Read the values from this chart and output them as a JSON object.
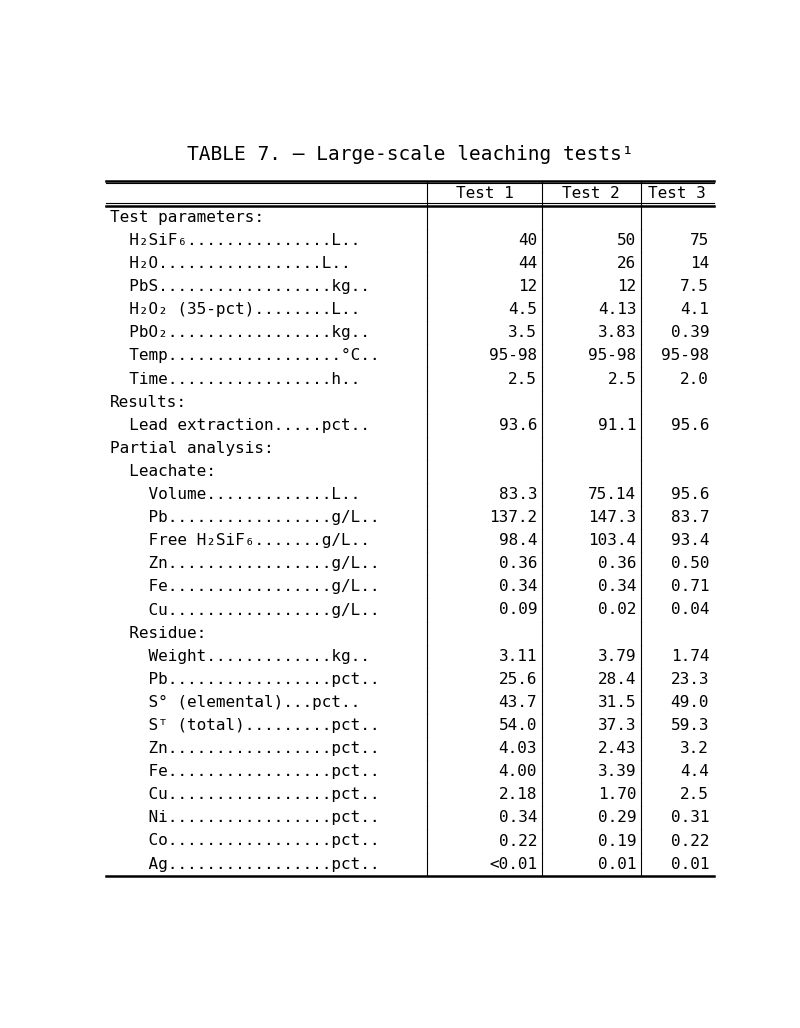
{
  "title": "TABLE 7. – Large-scale leaching tests¹",
  "rows": [
    {
      "label": "Test parameters:",
      "indent": 0,
      "section": true,
      "values": [
        "",
        "",
        ""
      ]
    },
    {
      "label": "  H₂SiF₆...............L..",
      "indent": 0,
      "section": false,
      "values": [
        "40",
        "50",
        "75"
      ]
    },
    {
      "label": "  H₂O.................L..",
      "indent": 0,
      "section": false,
      "values": [
        "44",
        "26",
        "14"
      ]
    },
    {
      "label": "  PbS..................kg..",
      "indent": 0,
      "section": false,
      "values": [
        "12",
        "12",
        "7.5"
      ]
    },
    {
      "label": "  H₂O₂ (35-pct)........L..",
      "indent": 0,
      "section": false,
      "values": [
        "4.5",
        "4.13",
        "4.1"
      ]
    },
    {
      "label": "  PbO₂.................kg..",
      "indent": 0,
      "section": false,
      "values": [
        "3.5",
        "3.83",
        "0.39"
      ]
    },
    {
      "label": "  Temp..................°C..",
      "indent": 0,
      "section": false,
      "values": [
        "95-98",
        "95-98",
        "95-98"
      ]
    },
    {
      "label": "  Time.................h..",
      "indent": 0,
      "section": false,
      "values": [
        "2.5",
        "2.5",
        "2.0"
      ]
    },
    {
      "label": "Results:",
      "indent": 0,
      "section": true,
      "values": [
        "",
        "",
        ""
      ]
    },
    {
      "label": "  Lead extraction.....pct..",
      "indent": 0,
      "section": false,
      "values": [
        "93.6",
        "91.1",
        "95.6"
      ]
    },
    {
      "label": "Partial analysis:",
      "indent": 0,
      "section": true,
      "values": [
        "",
        "",
        ""
      ]
    },
    {
      "label": "  Leachate:",
      "indent": 0,
      "section": true,
      "values": [
        "",
        "",
        ""
      ]
    },
    {
      "label": "    Volume.............L..",
      "indent": 0,
      "section": false,
      "values": [
        "83.3",
        "75.14",
        "95.6"
      ]
    },
    {
      "label": "    Pb.................g/L..",
      "indent": 0,
      "section": false,
      "values": [
        "137.2",
        "147.3",
        "83.7"
      ]
    },
    {
      "label": "    Free H₂SiF₆.......g/L..",
      "indent": 0,
      "section": false,
      "values": [
        "98.4",
        "103.4",
        "93.4"
      ]
    },
    {
      "label": "    Zn.................g/L..",
      "indent": 0,
      "section": false,
      "values": [
        "0.36",
        "0.36",
        "0.50"
      ]
    },
    {
      "label": "    Fe.................g/L..",
      "indent": 0,
      "section": false,
      "values": [
        "0.34",
        "0.34",
        "0.71"
      ]
    },
    {
      "label": "    Cu.................g/L..",
      "indent": 0,
      "section": false,
      "values": [
        "0.09",
        "0.02",
        "0.04"
      ]
    },
    {
      "label": "  Residue:",
      "indent": 0,
      "section": true,
      "values": [
        "",
        "",
        ""
      ]
    },
    {
      "label": "    Weight.............kg..",
      "indent": 0,
      "section": false,
      "values": [
        "3.11",
        "3.79",
        "1.74"
      ]
    },
    {
      "label": "    Pb.................pct..",
      "indent": 0,
      "section": false,
      "values": [
        "25.6",
        "28.4",
        "23.3"
      ]
    },
    {
      "label": "    S° (elemental)...pct..",
      "indent": 0,
      "section": false,
      "values": [
        "43.7",
        "31.5",
        "49.0"
      ]
    },
    {
      "label": "    Sᵀ (total).........pct..",
      "indent": 0,
      "section": false,
      "values": [
        "54.0",
        "37.3",
        "59.3"
      ]
    },
    {
      "label": "    Zn.................pct..",
      "indent": 0,
      "section": false,
      "values": [
        "4.03",
        "2.43",
        "3.2"
      ]
    },
    {
      "label": "    Fe.................pct..",
      "indent": 0,
      "section": false,
      "values": [
        "4.00",
        "3.39",
        "4.4"
      ]
    },
    {
      "label": "    Cu.................pct..",
      "indent": 0,
      "section": false,
      "values": [
        "2.18",
        "1.70",
        "2.5"
      ]
    },
    {
      "label": "    Ni.................pct..",
      "indent": 0,
      "section": false,
      "values": [
        "0.34",
        "0.29",
        "0.31"
      ]
    },
    {
      "label": "    Co.................pct..",
      "indent": 0,
      "section": false,
      "values": [
        "0.22",
        "0.19",
        "0.22"
      ]
    },
    {
      "label": "    Ag.................pct..",
      "indent": 0,
      "section": false,
      "values": [
        "<0.01",
        "0.01",
        "0.01"
      ]
    }
  ],
  "col_headers": [
    "Test 1",
    "Test 2",
    "Test 3"
  ],
  "bg_color": "#ffffff",
  "text_color": "#000000",
  "title_font_size": 14,
  "body_font_size": 11.5
}
